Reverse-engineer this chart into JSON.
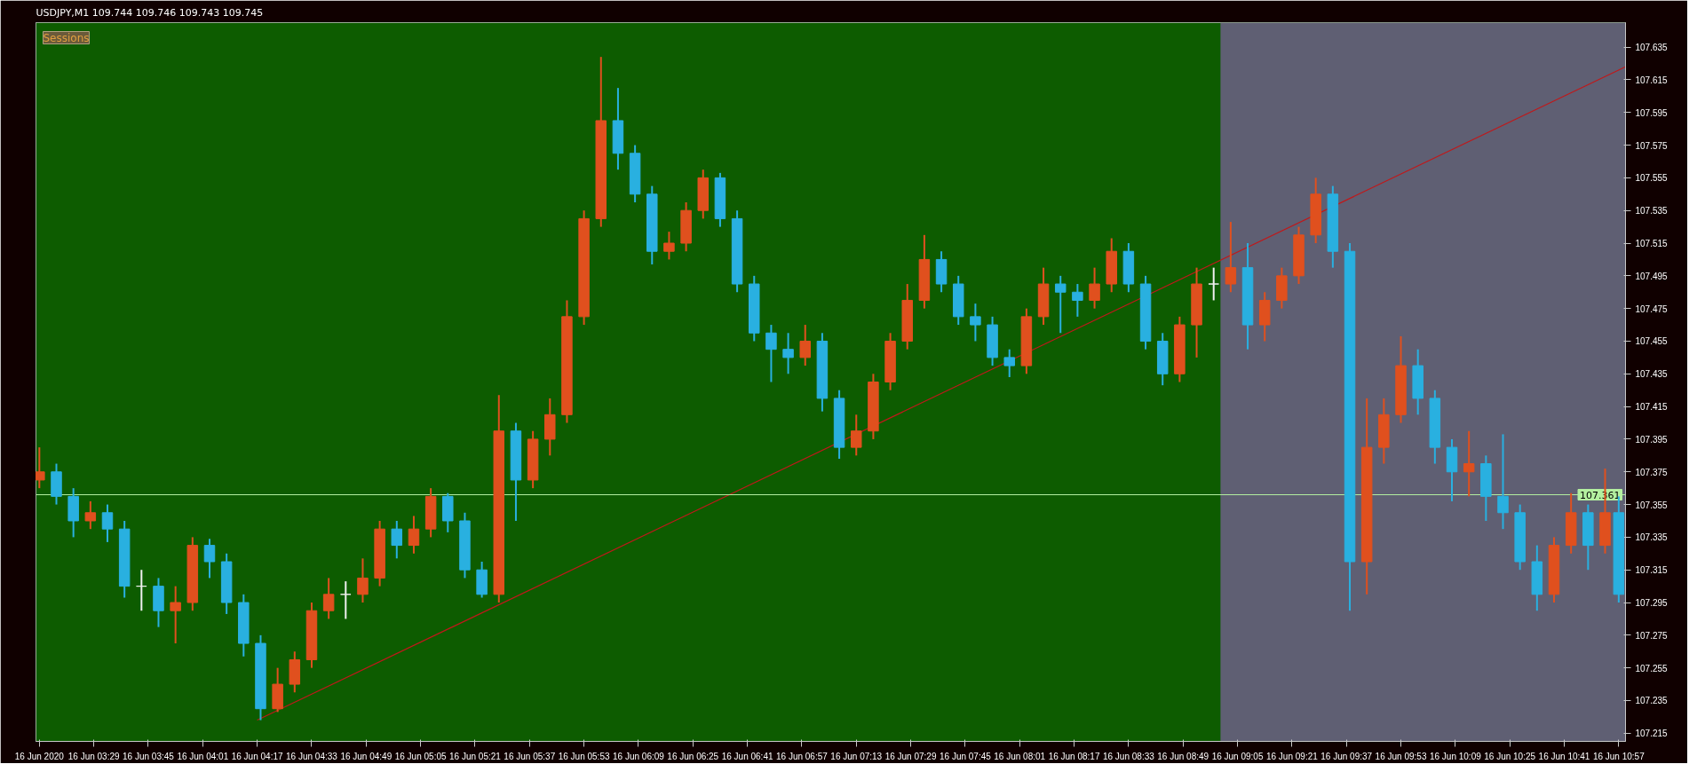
{
  "chart_data": {
    "type": "candlestick",
    "title": "USDJPY,M1  109.744 109.746 109.743 109.745",
    "annotations": [
      "Sessions"
    ],
    "x": [
      "2020-06-16T03:13",
      "2020-06-16T03:18",
      "2020-06-16T03:23",
      "2020-06-16T03:28",
      "2020-06-16T03:33",
      "2020-06-16T03:38",
      "2020-06-16T03:43",
      "2020-06-16T03:48",
      "2020-06-16T03:53",
      "2020-06-16T03:58",
      "2020-06-16T04:03",
      "2020-06-16T04:08",
      "2020-06-16T04:13",
      "2020-06-16T04:18",
      "2020-06-16T04:23",
      "2020-06-16T04:28",
      "2020-06-16T04:33",
      "2020-06-16T04:38",
      "2020-06-16T04:43",
      "2020-06-16T04:48",
      "2020-06-16T04:53",
      "2020-06-16T04:58",
      "2020-06-16T05:03",
      "2020-06-16T05:08",
      "2020-06-16T05:13",
      "2020-06-16T05:18",
      "2020-06-16T05:23",
      "2020-06-16T05:28",
      "2020-06-16T05:33",
      "2020-06-16T05:38",
      "2020-06-16T05:43",
      "2020-06-16T05:48",
      "2020-06-16T05:53",
      "2020-06-16T05:58",
      "2020-06-16T06:03",
      "2020-06-16T06:08",
      "2020-06-16T06:13",
      "2020-06-16T06:18",
      "2020-06-16T06:23",
      "2020-06-16T06:28",
      "2020-06-16T06:33",
      "2020-06-16T06:38",
      "2020-06-16T06:43",
      "2020-06-16T06:48",
      "2020-06-16T06:53",
      "2020-06-16T06:58",
      "2020-06-16T07:03",
      "2020-06-16T07:08",
      "2020-06-16T07:13",
      "2020-06-16T07:18",
      "2020-06-16T07:23",
      "2020-06-16T07:28",
      "2020-06-16T07:33",
      "2020-06-16T07:38",
      "2020-06-16T07:43",
      "2020-06-16T07:48",
      "2020-06-16T07:53",
      "2020-06-16T07:58",
      "2020-06-16T08:03",
      "2020-06-16T08:08",
      "2020-06-16T08:13",
      "2020-06-16T08:18",
      "2020-06-16T08:23",
      "2020-06-16T08:28",
      "2020-06-16T08:33",
      "2020-06-16T08:38",
      "2020-06-16T08:43",
      "2020-06-16T08:48",
      "2020-06-16T08:53",
      "2020-06-16T08:58",
      "2020-06-16T09:03",
      "2020-06-16T09:08",
      "2020-06-16T09:13",
      "2020-06-16T09:18",
      "2020-06-16T09:23",
      "2020-06-16T09:28",
      "2020-06-16T09:33",
      "2020-06-16T09:38",
      "2020-06-16T09:43",
      "2020-06-16T09:48",
      "2020-06-16T09:53",
      "2020-06-16T09:58",
      "2020-06-16T10:03",
      "2020-06-16T10:08",
      "2020-06-16T10:13",
      "2020-06-16T10:18",
      "2020-06-16T10:23",
      "2020-06-16T10:28",
      "2020-06-16T10:33",
      "2020-06-16T10:38",
      "2020-06-16T10:43",
      "2020-06-16T10:48",
      "2020-06-16T10:53",
      "2020-06-16T10:57"
    ],
    "ohlc": [
      [
        107.37,
        107.39,
        107.365,
        107.375
      ],
      [
        107.375,
        107.38,
        107.355,
        107.36
      ],
      [
        107.36,
        107.365,
        107.335,
        107.345
      ],
      [
        107.345,
        107.357,
        107.34,
        107.35
      ],
      [
        107.35,
        107.355,
        107.332,
        107.34
      ],
      [
        107.34,
        107.345,
        107.298,
        107.305
      ],
      [
        107.305,
        107.315,
        107.29,
        107.305
      ],
      [
        107.305,
        107.31,
        107.28,
        107.29
      ],
      [
        107.29,
        107.305,
        107.27,
        107.295
      ],
      [
        107.295,
        107.335,
        107.29,
        107.33
      ],
      [
        107.33,
        107.334,
        107.31,
        107.32
      ],
      [
        107.32,
        107.325,
        107.288,
        107.295
      ],
      [
        107.295,
        107.3,
        107.262,
        107.27
      ],
      [
        107.27,
        107.275,
        107.223,
        107.23
      ],
      [
        107.23,
        107.255,
        107.228,
        107.245
      ],
      [
        107.245,
        107.265,
        107.24,
        107.26
      ],
      [
        107.26,
        107.295,
        107.255,
        107.29
      ],
      [
        107.29,
        107.31,
        107.285,
        107.3
      ],
      [
        107.3,
        107.308,
        107.285,
        107.3
      ],
      [
        107.3,
        107.322,
        107.295,
        107.31
      ],
      [
        107.31,
        107.345,
        107.305,
        107.34
      ],
      [
        107.34,
        107.345,
        107.322,
        107.33
      ],
      [
        107.33,
        107.348,
        107.325,
        107.34
      ],
      [
        107.34,
        107.365,
        107.335,
        107.36
      ],
      [
        107.36,
        107.362,
        107.338,
        107.345
      ],
      [
        107.345,
        107.35,
        107.31,
        107.315
      ],
      [
        107.315,
        107.32,
        107.298,
        107.3
      ],
      [
        107.3,
        107.422,
        107.295,
        107.4
      ],
      [
        107.4,
        107.405,
        107.345,
        107.37
      ],
      [
        107.37,
        107.4,
        107.365,
        107.395
      ],
      [
        107.395,
        107.42,
        107.385,
        107.41
      ],
      [
        107.41,
        107.48,
        107.405,
        107.47
      ],
      [
        107.47,
        107.535,
        107.465,
        107.53
      ],
      [
        107.53,
        107.629,
        107.525,
        107.59
      ],
      [
        107.59,
        107.61,
        107.56,
        107.57
      ],
      [
        107.57,
        107.575,
        107.54,
        107.545
      ],
      [
        107.545,
        107.55,
        107.502,
        107.51
      ],
      [
        107.51,
        107.522,
        107.505,
        107.515
      ],
      [
        107.515,
        107.54,
        107.51,
        107.535
      ],
      [
        107.535,
        107.56,
        107.53,
        107.555
      ],
      [
        107.555,
        107.558,
        107.525,
        107.53
      ],
      [
        107.53,
        107.535,
        107.485,
        107.49
      ],
      [
        107.49,
        107.495,
        107.455,
        107.46
      ],
      [
        107.46,
        107.465,
        107.43,
        107.45
      ],
      [
        107.45,
        107.46,
        107.435,
        107.445
      ],
      [
        107.445,
        107.465,
        107.44,
        107.455
      ],
      [
        107.455,
        107.46,
        107.412,
        107.42
      ],
      [
        107.42,
        107.425,
        107.383,
        107.39
      ],
      [
        107.39,
        107.41,
        107.385,
        107.4
      ],
      [
        107.4,
        107.435,
        107.395,
        107.43
      ],
      [
        107.43,
        107.46,
        107.425,
        107.455
      ],
      [
        107.455,
        107.49,
        107.45,
        107.48
      ],
      [
        107.48,
        107.52,
        107.475,
        107.505
      ],
      [
        107.505,
        107.51,
        107.485,
        107.49
      ],
      [
        107.49,
        107.495,
        107.465,
        107.47
      ],
      [
        107.47,
        107.478,
        107.455,
        107.465
      ],
      [
        107.465,
        107.47,
        107.44,
        107.445
      ],
      [
        107.445,
        107.45,
        107.433,
        107.44
      ],
      [
        107.44,
        107.475,
        107.435,
        107.47
      ],
      [
        107.47,
        107.5,
        107.465,
        107.49
      ],
      [
        107.49,
        107.495,
        107.46,
        107.485
      ],
      [
        107.485,
        107.49,
        107.47,
        107.48
      ],
      [
        107.48,
        107.5,
        107.475,
        107.49
      ],
      [
        107.49,
        107.518,
        107.485,
        107.51
      ],
      [
        107.51,
        107.515,
        107.485,
        107.49
      ],
      [
        107.49,
        107.495,
        107.45,
        107.455
      ],
      [
        107.455,
        107.46,
        107.428,
        107.435
      ],
      [
        107.435,
        107.47,
        107.43,
        107.465
      ],
      [
        107.465,
        107.5,
        107.445,
        107.49
      ],
      [
        107.49,
        107.5,
        107.48,
        107.49
      ],
      [
        107.49,
        107.528,
        107.485,
        107.5
      ],
      [
        107.5,
        107.515,
        107.45,
        107.465
      ],
      [
        107.465,
        107.485,
        107.455,
        107.48
      ],
      [
        107.48,
        107.5,
        107.475,
        107.495
      ],
      [
        107.495,
        107.525,
        107.49,
        107.52
      ],
      [
        107.52,
        107.555,
        107.515,
        107.545
      ],
      [
        107.545,
        107.55,
        107.5,
        107.51
      ],
      [
        107.51,
        107.515,
        107.29,
        107.32
      ],
      [
        107.32,
        107.42,
        107.3,
        107.39
      ],
      [
        107.39,
        107.42,
        107.38,
        107.41
      ],
      [
        107.41,
        107.458,
        107.405,
        107.44
      ],
      [
        107.44,
        107.45,
        107.41,
        107.42
      ],
      [
        107.42,
        107.425,
        107.38,
        107.39
      ],
      [
        107.39,
        107.395,
        107.357,
        107.375
      ],
      [
        107.375,
        107.4,
        107.36,
        107.38
      ],
      [
        107.38,
        107.385,
        107.345,
        107.36
      ],
      [
        107.36,
        107.398,
        107.34,
        107.35
      ],
      [
        107.35,
        107.355,
        107.315,
        107.32
      ],
      [
        107.32,
        107.33,
        107.29,
        107.3
      ],
      [
        107.3,
        107.335,
        107.295,
        107.33
      ],
      [
        107.33,
        107.362,
        107.325,
        107.35
      ],
      [
        107.35,
        107.355,
        107.315,
        107.33
      ],
      [
        107.33,
        107.377,
        107.325,
        107.35
      ],
      [
        107.35,
        107.36,
        107.295,
        107.3
      ]
    ],
    "colors": [
      "#e0501e",
      "#29b0e0",
      "#29b0e0",
      "#e0501e",
      "#29b0e0",
      "#29b0e0",
      "#f0f0f0",
      "#29b0e0",
      "#e0501e",
      "#e0501e",
      "#29b0e0",
      "#29b0e0",
      "#29b0e0",
      "#29b0e0",
      "#e0501e",
      "#e0501e",
      "#e0501e",
      "#e0501e",
      "#f0f0f0",
      "#e0501e",
      "#e0501e",
      "#29b0e0",
      "#e0501e",
      "#e0501e",
      "#29b0e0",
      "#29b0e0",
      "#29b0e0",
      "#e0501e",
      "#29b0e0",
      "#e0501e",
      "#e0501e",
      "#e0501e",
      "#e0501e",
      "#e0501e",
      "#29b0e0",
      "#29b0e0",
      "#29b0e0",
      "#e0501e",
      "#e0501e",
      "#e0501e",
      "#29b0e0",
      "#29b0e0",
      "#29b0e0",
      "#29b0e0",
      "#29b0e0",
      "#e0501e",
      "#29b0e0",
      "#29b0e0",
      "#e0501e",
      "#e0501e",
      "#e0501e",
      "#e0501e",
      "#e0501e",
      "#29b0e0",
      "#29b0e0",
      "#29b0e0",
      "#29b0e0",
      "#29b0e0",
      "#e0501e",
      "#e0501e",
      "#29b0e0",
      "#29b0e0",
      "#e0501e",
      "#e0501e",
      "#29b0e0",
      "#29b0e0",
      "#29b0e0",
      "#e0501e",
      "#e0501e",
      "#f0f0f0",
      "#e0501e",
      "#29b0e0",
      "#e0501e",
      "#e0501e",
      "#e0501e",
      "#e0501e",
      "#29b0e0",
      "#29b0e0",
      "#e0501e",
      "#e0501e",
      "#e0501e",
      "#29b0e0",
      "#29b0e0",
      "#29b0e0",
      "#e0501e",
      "#29b0e0",
      "#29b0e0",
      "#29b0e0",
      "#29b0e0",
      "#e0501e",
      "#e0501e",
      "#29b0e0",
      "#e0501e",
      "#29b0e0"
    ],
    "series": [
      {
        "type": "line",
        "color": "#c0181a",
        "x": [
          "2020-06-16T04:17",
          "2020-06-16T10:59"
        ],
        "values": [
          107.223,
          107.623
        ]
      }
    ],
    "ref_lines": [
      {
        "axis": "y",
        "value": 107.361,
        "label": "107.361",
        "color": "#b4f0a0"
      }
    ],
    "bands": [
      {
        "axis": "x",
        "from": "2020-06-16T03:12",
        "to": "2020-06-16T10:59",
        "color": "#0d5c00"
      },
      {
        "axis": "x",
        "from": "2020-06-16T09:00",
        "to": "2020-06-16T10:59",
        "color": "#5f5f73"
      }
    ],
    "xlim": [
      "2020-06-16T03:12",
      "2020-06-16T10:59"
    ],
    "xticks": [
      {
        "value": "2020-06-16T03:13",
        "label": "16 Jun 2020"
      },
      {
        "value": "2020-06-16T03:29",
        "label": "16 Jun 03:29"
      },
      {
        "value": "2020-06-16T03:45",
        "label": "16 Jun 03:45"
      },
      {
        "value": "2020-06-16T04:01",
        "label": "16 Jun 04:01"
      },
      {
        "value": "2020-06-16T04:17",
        "label": "16 Jun 04:17"
      },
      {
        "value": "2020-06-16T04:33",
        "label": "16 Jun 04:33"
      },
      {
        "value": "2020-06-16T04:49",
        "label": "16 Jun 04:49"
      },
      {
        "value": "2020-06-16T05:05",
        "label": "16 Jun 05:05"
      },
      {
        "value": "2020-06-16T05:21",
        "label": "16 Jun 05:21"
      },
      {
        "value": "2020-06-16T05:37",
        "label": "16 Jun 05:37"
      },
      {
        "value": "2020-06-16T05:53",
        "label": "16 Jun 05:53"
      },
      {
        "value": "2020-06-16T06:09",
        "label": "16 Jun 06:09"
      },
      {
        "value": "2020-06-16T06:25",
        "label": "16 Jun 06:25"
      },
      {
        "value": "2020-06-16T06:41",
        "label": "16 Jun 06:41"
      },
      {
        "value": "2020-06-16T06:57",
        "label": "16 Jun 06:57"
      },
      {
        "value": "2020-06-16T07:13",
        "label": "16 Jun 07:13"
      },
      {
        "value": "2020-06-16T07:29",
        "label": "16 Jun 07:29"
      },
      {
        "value": "2020-06-16T07:45",
        "label": "16 Jun 07:45"
      },
      {
        "value": "2020-06-16T08:01",
        "label": "16 Jun 08:01"
      },
      {
        "value": "2020-06-16T08:17",
        "label": "16 Jun 08:17"
      },
      {
        "value": "2020-06-16T08:33",
        "label": "16 Jun 08:33"
      },
      {
        "value": "2020-06-16T08:49",
        "label": "16 Jun 08:49"
      },
      {
        "value": "2020-06-16T09:05",
        "label": "16 Jun 09:05"
      },
      {
        "value": "2020-06-16T09:21",
        "label": "16 Jun 09:21"
      },
      {
        "value": "2020-06-16T09:37",
        "label": "16 Jun 09:37"
      },
      {
        "value": "2020-06-16T09:53",
        "label": "16 Jun 09:53"
      },
      {
        "value": "2020-06-16T10:09",
        "label": "16 Jun 10:09"
      },
      {
        "value": "2020-06-16T10:25",
        "label": "16 Jun 10:25"
      },
      {
        "value": "2020-06-16T10:41",
        "label": "16 Jun 10:41"
      },
      {
        "value": "2020-06-16T10:57",
        "label": "16 Jun 10:57"
      }
    ],
    "ylim": [
      107.21,
      107.65
    ],
    "yticks": [
      107.215,
      107.235,
      107.255,
      107.275,
      107.295,
      107.315,
      107.335,
      107.355,
      107.375,
      107.395,
      107.415,
      107.435,
      107.455,
      107.475,
      107.495,
      107.515,
      107.535,
      107.555,
      107.575,
      107.595,
      107.615,
      107.635
    ]
  }
}
